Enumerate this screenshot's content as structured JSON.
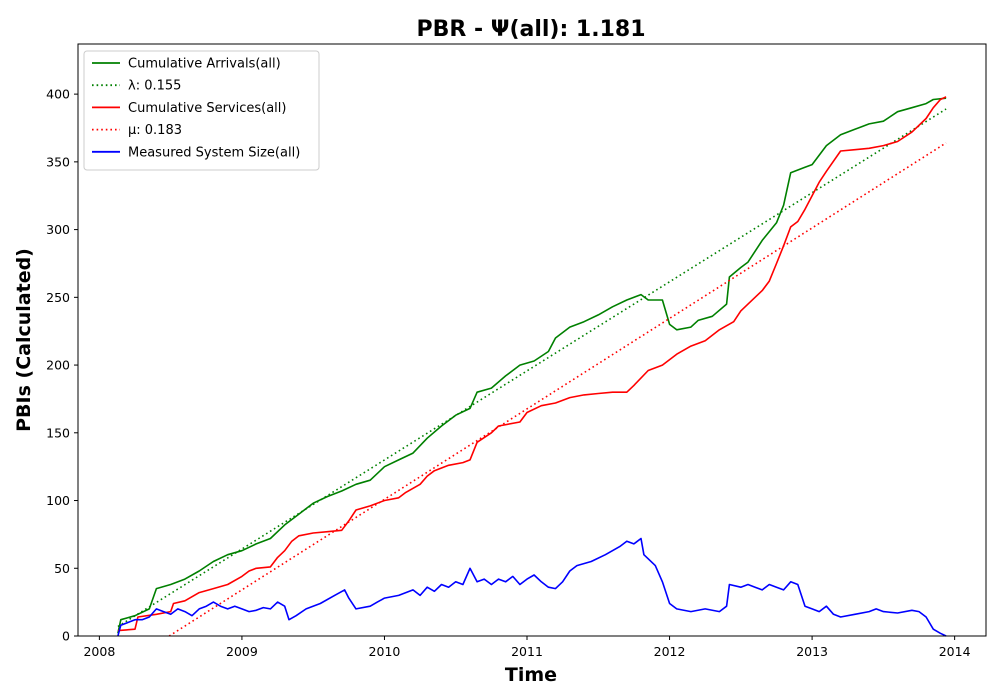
{
  "chart_data": {
    "type": "line",
    "title": "PBR -  Ψ(all): 1.181",
    "xlabel": "Time",
    "ylabel": "PBIs (Calculated)",
    "xlim": [
      2007.85,
      2014.22
    ],
    "ylim": [
      0,
      437
    ],
    "x_ticks": [
      2008,
      2009,
      2010,
      2011,
      2012,
      2013,
      2014
    ],
    "x_tick_labels": [
      "2008",
      "2009",
      "2010",
      "2011",
      "2012",
      "2013",
      "2014"
    ],
    "y_ticks": [
      0,
      50,
      100,
      150,
      200,
      250,
      300,
      350,
      400
    ],
    "y_tick_labels": [
      "0",
      "50",
      "100",
      "150",
      "200",
      "250",
      "300",
      "350",
      "400"
    ],
    "legend_position": "upper-left",
    "grid": false,
    "series": [
      {
        "name": "Cumulative Arrivals(all)",
        "color": "#008000",
        "style": "solid",
        "points": [
          [
            2008.13,
            2
          ],
          [
            2008.15,
            12
          ],
          [
            2008.25,
            15
          ],
          [
            2008.35,
            20
          ],
          [
            2008.4,
            35
          ],
          [
            2008.5,
            38
          ],
          [
            2008.6,
            42
          ],
          [
            2008.7,
            48
          ],
          [
            2008.8,
            55
          ],
          [
            2008.9,
            60
          ],
          [
            2009.0,
            63
          ],
          [
            2009.1,
            68
          ],
          [
            2009.2,
            72
          ],
          [
            2009.3,
            82
          ],
          [
            2009.4,
            90
          ],
          [
            2009.5,
            98
          ],
          [
            2009.6,
            103
          ],
          [
            2009.7,
            107
          ],
          [
            2009.8,
            112
          ],
          [
            2009.9,
            115
          ],
          [
            2010.0,
            125
          ],
          [
            2010.1,
            130
          ],
          [
            2010.2,
            135
          ],
          [
            2010.3,
            146
          ],
          [
            2010.4,
            155
          ],
          [
            2010.5,
            163
          ],
          [
            2010.6,
            168
          ],
          [
            2010.65,
            180
          ],
          [
            2010.75,
            183
          ],
          [
            2010.85,
            192
          ],
          [
            2010.95,
            200
          ],
          [
            2011.05,
            203
          ],
          [
            2011.15,
            210
          ],
          [
            2011.2,
            220
          ],
          [
            2011.3,
            228
          ],
          [
            2011.4,
            232
          ],
          [
            2011.5,
            237
          ],
          [
            2011.6,
            243
          ],
          [
            2011.7,
            248
          ],
          [
            2011.8,
            252
          ],
          [
            2011.85,
            248
          ],
          [
            2011.95,
            248
          ],
          [
            2012.0,
            230
          ],
          [
            2012.05,
            226
          ],
          [
            2012.15,
            228
          ],
          [
            2012.2,
            233
          ],
          [
            2012.3,
            236
          ],
          [
            2012.4,
            245
          ],
          [
            2012.42,
            265
          ],
          [
            2012.5,
            272
          ],
          [
            2012.55,
            276
          ],
          [
            2012.65,
            292
          ],
          [
            2012.75,
            305
          ],
          [
            2012.8,
            318
          ],
          [
            2012.85,
            342
          ],
          [
            2012.95,
            346
          ],
          [
            2013.0,
            348
          ],
          [
            2013.1,
            362
          ],
          [
            2013.2,
            370
          ],
          [
            2013.3,
            374
          ],
          [
            2013.4,
            378
          ],
          [
            2013.5,
            380
          ],
          [
            2013.6,
            387
          ],
          [
            2013.7,
            390
          ],
          [
            2013.8,
            393
          ],
          [
            2013.85,
            396
          ],
          [
            2013.94,
            397
          ]
        ]
      },
      {
        "name": "λ: 0.155",
        "legend_label": "λ: 0.155",
        "color": "#008000",
        "style": "dotted",
        "points": [
          [
            2008.13,
            7
          ],
          [
            2013.94,
            389
          ]
        ]
      },
      {
        "name": "Cumulative Services(all)",
        "color": "#ff0000",
        "style": "solid",
        "points": [
          [
            2008.13,
            4
          ],
          [
            2008.25,
            5
          ],
          [
            2008.27,
            14
          ],
          [
            2008.4,
            16
          ],
          [
            2008.5,
            18
          ],
          [
            2008.52,
            24
          ],
          [
            2008.6,
            26
          ],
          [
            2008.7,
            32
          ],
          [
            2008.8,
            35
          ],
          [
            2008.9,
            38
          ],
          [
            2009.0,
            44
          ],
          [
            2009.05,
            48
          ],
          [
            2009.1,
            50
          ],
          [
            2009.2,
            51
          ],
          [
            2009.25,
            58
          ],
          [
            2009.3,
            63
          ],
          [
            2009.35,
            70
          ],
          [
            2009.4,
            74
          ],
          [
            2009.5,
            76
          ],
          [
            2009.6,
            77
          ],
          [
            2009.7,
            78
          ],
          [
            2009.75,
            85
          ],
          [
            2009.8,
            93
          ],
          [
            2009.9,
            96
          ],
          [
            2010.0,
            100
          ],
          [
            2010.1,
            102
          ],
          [
            2010.15,
            106
          ],
          [
            2010.25,
            112
          ],
          [
            2010.3,
            118
          ],
          [
            2010.35,
            122
          ],
          [
            2010.45,
            126
          ],
          [
            2010.55,
            128
          ],
          [
            2010.6,
            130
          ],
          [
            2010.65,
            143
          ],
          [
            2010.75,
            150
          ],
          [
            2010.8,
            155
          ],
          [
            2010.95,
            158
          ],
          [
            2011.0,
            165
          ],
          [
            2011.1,
            170
          ],
          [
            2011.2,
            172
          ],
          [
            2011.3,
            176
          ],
          [
            2011.4,
            178
          ],
          [
            2011.5,
            179
          ],
          [
            2011.6,
            180
          ],
          [
            2011.7,
            180
          ],
          [
            2011.75,
            185
          ],
          [
            2011.85,
            196
          ],
          [
            2011.95,
            200
          ],
          [
            2012.05,
            208
          ],
          [
            2012.15,
            214
          ],
          [
            2012.25,
            218
          ],
          [
            2012.35,
            226
          ],
          [
            2012.45,
            232
          ],
          [
            2012.5,
            240
          ],
          [
            2012.55,
            245
          ],
          [
            2012.6,
            250
          ],
          [
            2012.65,
            255
          ],
          [
            2012.7,
            262
          ],
          [
            2012.75,
            275
          ],
          [
            2012.8,
            288
          ],
          [
            2012.85,
            302
          ],
          [
            2012.9,
            306
          ],
          [
            2012.95,
            315
          ],
          [
            2013.0,
            325
          ],
          [
            2013.05,
            335
          ],
          [
            2013.1,
            343
          ],
          [
            2013.2,
            358
          ],
          [
            2013.3,
            359
          ],
          [
            2013.4,
            360
          ],
          [
            2013.5,
            362
          ],
          [
            2013.6,
            365
          ],
          [
            2013.7,
            372
          ],
          [
            2013.8,
            382
          ],
          [
            2013.85,
            390
          ],
          [
            2013.9,
            396
          ],
          [
            2013.94,
            398
          ]
        ]
      },
      {
        "name": "μ: 0.183",
        "legend_label": "μ: 0.183",
        "color": "#ff0000",
        "style": "dotted",
        "points": [
          [
            2008.49,
            0
          ],
          [
            2013.94,
            364
          ]
        ]
      },
      {
        "name": "Measured System Size(all)",
        "color": "#0000ff",
        "style": "solid",
        "points": [
          [
            2008.13,
            0
          ],
          [
            2008.15,
            8
          ],
          [
            2008.2,
            10
          ],
          [
            2008.25,
            12
          ],
          [
            2008.3,
            12
          ],
          [
            2008.35,
            14
          ],
          [
            2008.4,
            20
          ],
          [
            2008.45,
            18
          ],
          [
            2008.5,
            16
          ],
          [
            2008.55,
            20
          ],
          [
            2008.6,
            18
          ],
          [
            2008.65,
            15
          ],
          [
            2008.7,
            20
          ],
          [
            2008.75,
            22
          ],
          [
            2008.8,
            25
          ],
          [
            2008.85,
            22
          ],
          [
            2008.9,
            20
          ],
          [
            2008.95,
            22
          ],
          [
            2009.0,
            20
          ],
          [
            2009.05,
            18
          ],
          [
            2009.1,
            19
          ],
          [
            2009.15,
            21
          ],
          [
            2009.2,
            20
          ],
          [
            2009.25,
            25
          ],
          [
            2009.3,
            22
          ],
          [
            2009.33,
            12
          ],
          [
            2009.38,
            15
          ],
          [
            2009.45,
            20
          ],
          [
            2009.55,
            24
          ],
          [
            2009.65,
            30
          ],
          [
            2009.72,
            34
          ],
          [
            2009.75,
            28
          ],
          [
            2009.8,
            20
          ],
          [
            2009.9,
            22
          ],
          [
            2009.95,
            25
          ],
          [
            2010.0,
            28
          ],
          [
            2010.1,
            30
          ],
          [
            2010.2,
            34
          ],
          [
            2010.25,
            30
          ],
          [
            2010.3,
            36
          ],
          [
            2010.35,
            33
          ],
          [
            2010.4,
            38
          ],
          [
            2010.45,
            36
          ],
          [
            2010.5,
            40
          ],
          [
            2010.55,
            38
          ],
          [
            2010.6,
            50
          ],
          [
            2010.65,
            40
          ],
          [
            2010.7,
            42
          ],
          [
            2010.75,
            38
          ],
          [
            2010.8,
            42
          ],
          [
            2010.85,
            40
          ],
          [
            2010.9,
            44
          ],
          [
            2010.95,
            38
          ],
          [
            2011.0,
            42
          ],
          [
            2011.05,
            45
          ],
          [
            2011.1,
            40
          ],
          [
            2011.15,
            36
          ],
          [
            2011.2,
            35
          ],
          [
            2011.25,
            40
          ],
          [
            2011.3,
            48
          ],
          [
            2011.35,
            52
          ],
          [
            2011.45,
            55
          ],
          [
            2011.55,
            60
          ],
          [
            2011.65,
            66
          ],
          [
            2011.7,
            70
          ],
          [
            2011.75,
            68
          ],
          [
            2011.8,
            72
          ],
          [
            2011.82,
            60
          ],
          [
            2011.9,
            52
          ],
          [
            2011.95,
            40
          ],
          [
            2012.0,
            24
          ],
          [
            2012.05,
            20
          ],
          [
            2012.15,
            18
          ],
          [
            2012.25,
            20
          ],
          [
            2012.35,
            18
          ],
          [
            2012.4,
            22
          ],
          [
            2012.42,
            38
          ],
          [
            2012.5,
            36
          ],
          [
            2012.55,
            38
          ],
          [
            2012.6,
            36
          ],
          [
            2012.65,
            34
          ],
          [
            2012.7,
            38
          ],
          [
            2012.75,
            36
          ],
          [
            2012.8,
            34
          ],
          [
            2012.85,
            40
          ],
          [
            2012.9,
            38
          ],
          [
            2012.95,
            22
          ],
          [
            2013.0,
            20
          ],
          [
            2013.05,
            18
          ],
          [
            2013.1,
            22
          ],
          [
            2013.15,
            16
          ],
          [
            2013.2,
            14
          ],
          [
            2013.3,
            16
          ],
          [
            2013.4,
            18
          ],
          [
            2013.45,
            20
          ],
          [
            2013.5,
            18
          ],
          [
            2013.6,
            17
          ],
          [
            2013.7,
            19
          ],
          [
            2013.75,
            18
          ],
          [
            2013.8,
            14
          ],
          [
            2013.85,
            5
          ],
          [
            2013.9,
            2
          ],
          [
            2013.94,
            0
          ]
        ]
      }
    ]
  }
}
